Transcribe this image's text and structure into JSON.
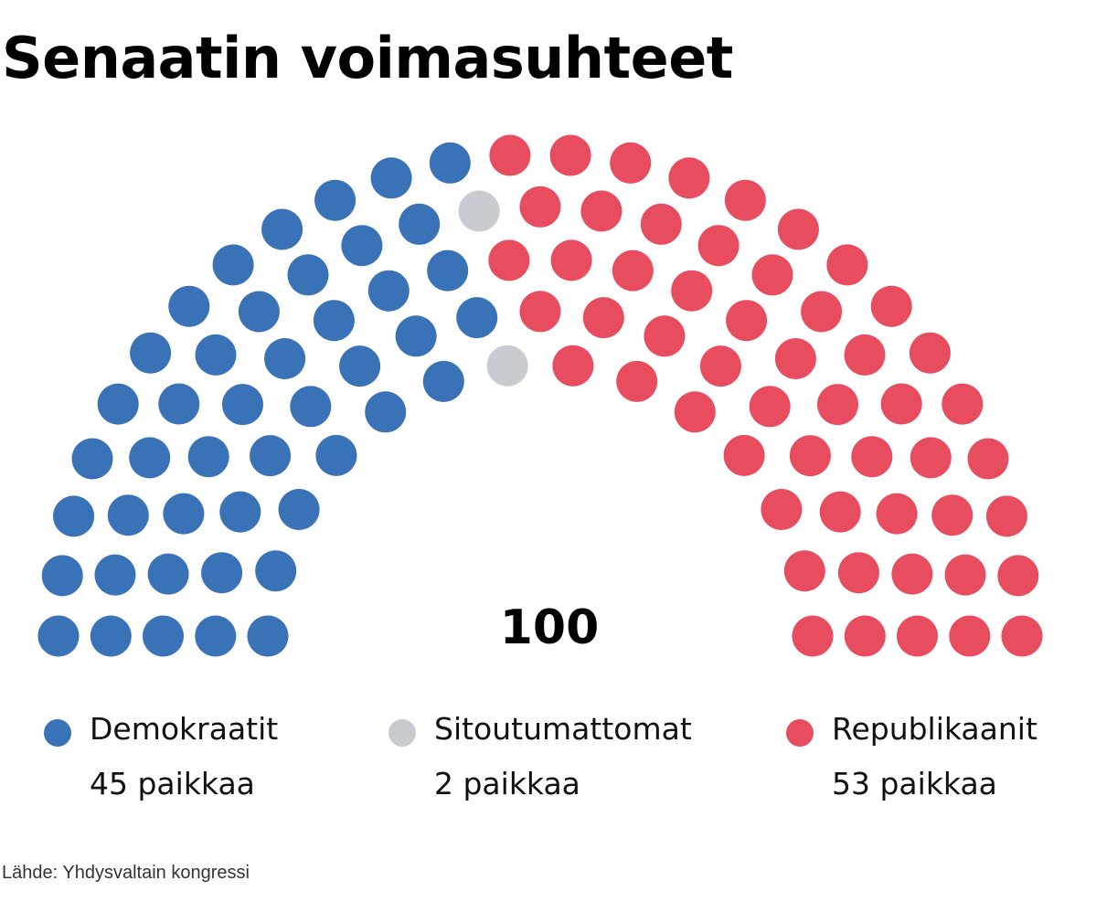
{
  "title": "Senaatin voimasuhteet",
  "source": "Lähde: Yhdysvaltain kongressi",
  "chart_data": {
    "type": "parliament",
    "title": "Senaatin voimasuhteet",
    "total_seats": 100,
    "total_label": "100",
    "seat_unit": "paikkaa",
    "parties": [
      {
        "name": "Demokraatit",
        "seats": 45,
        "seats_label": "45 paikkaa",
        "color": "#3a72b8"
      },
      {
        "name": "Sitoutumattomat",
        "seats": 2,
        "seats_label": "2 paikkaa",
        "color": "#c8cbd0"
      },
      {
        "name": "Republikaanit",
        "seats": 53,
        "seats_label": "53 paikkaa",
        "color": "#e84c5f"
      }
    ],
    "legend_position": "bottom"
  }
}
